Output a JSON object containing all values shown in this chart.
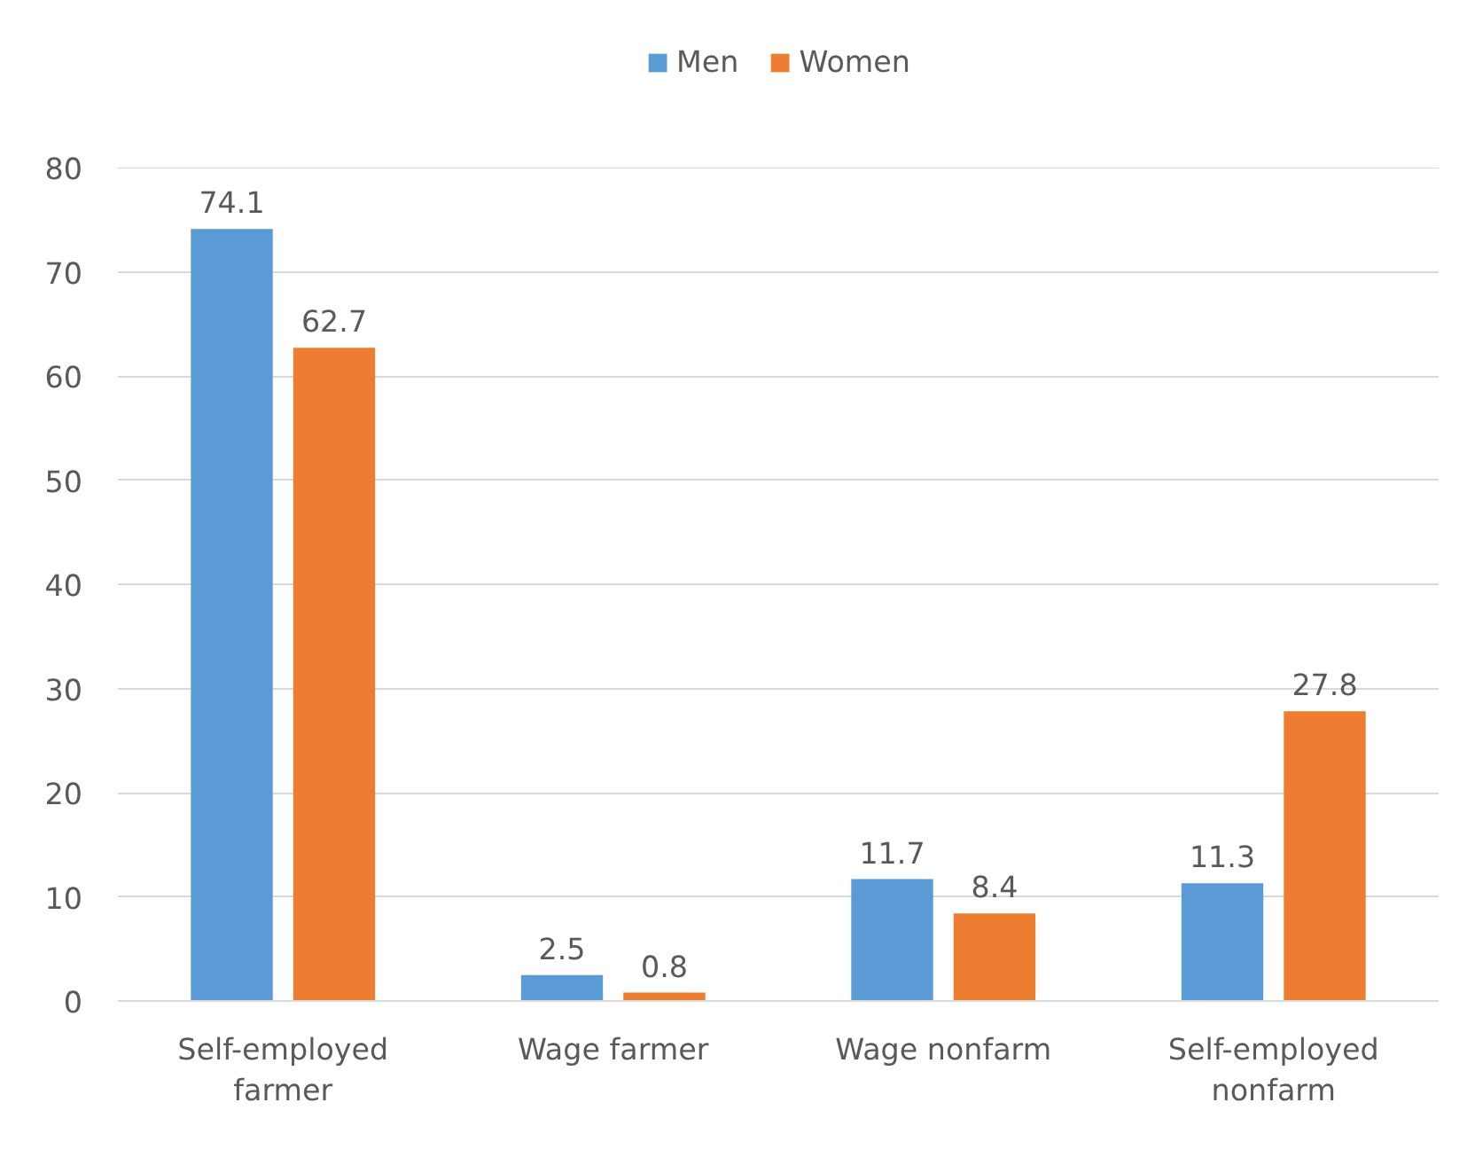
{
  "chart_data": {
    "type": "bar",
    "categories": [
      "Self-employed farmer",
      "Wage farmer",
      "Wage nonfarm",
      "Self-employed nonfarm"
    ],
    "series": [
      {
        "name": "Men",
        "color": "#5b9bd5",
        "values": [
          74.1,
          2.5,
          11.7,
          11.3
        ]
      },
      {
        "name": "Women",
        "color": "#ed7d31",
        "values": [
          62.7,
          0.8,
          8.4,
          27.8
        ]
      }
    ],
    "ylim": [
      0,
      80
    ],
    "yticks": [
      0,
      10,
      20,
      30,
      40,
      50,
      60,
      70,
      80
    ],
    "grid": "y",
    "legend": "top",
    "data_labels": true
  }
}
